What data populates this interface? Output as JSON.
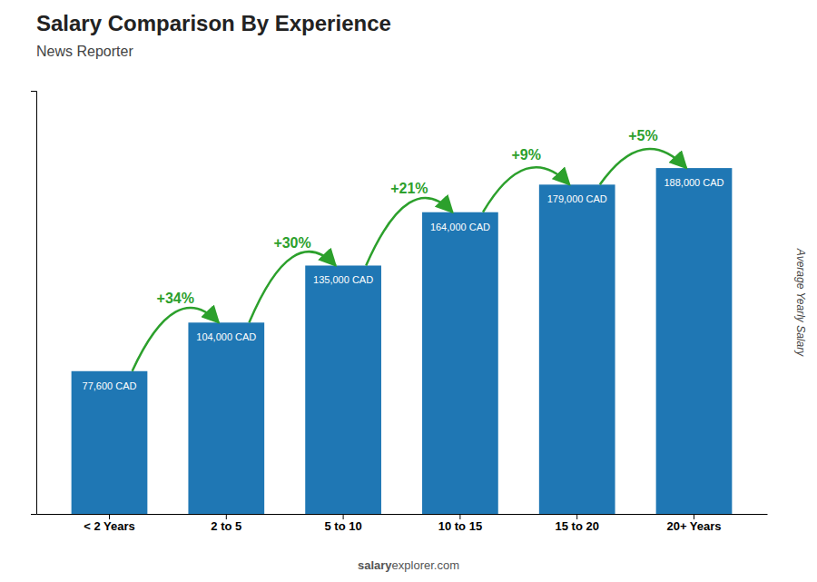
{
  "chart_data": {
    "type": "bar",
    "title": "Salary Comparison By Experience",
    "subtitle": "News Reporter",
    "categories": [
      "< 2 Years",
      "2 to 5",
      "5 to 10",
      "10 to 15",
      "15 to 20",
      "20+ Years"
    ],
    "values": [
      77600,
      104000,
      135000,
      164000,
      179000,
      188000
    ],
    "value_labels": [
      "77,600 CAD",
      "104,000 CAD",
      "135,000 CAD",
      "164,000 CAD",
      "179,000 CAD",
      "188,000 CAD"
    ],
    "data_labels": true,
    "annotations": [
      "+34%",
      "+30%",
      "+21%",
      "+9%",
      "+5%"
    ],
    "ylabel": "Average Yearly Salary",
    "footer": [
      "salary",
      "explorer.com"
    ],
    "ylim": [
      0,
      230000
    ],
    "tick_labels": "x",
    "grid": false
  }
}
